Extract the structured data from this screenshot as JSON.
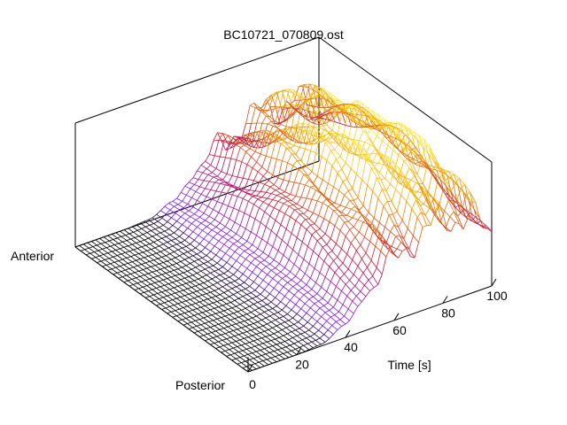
{
  "chart_data": {
    "type": "surface-3d",
    "title": "BC10721_070809.ost",
    "x_axis": {
      "label": "Time [s]",
      "range": [
        0,
        100
      ],
      "ticks": [
        0,
        20,
        40,
        60,
        80,
        100
      ]
    },
    "y_axis": {
      "tick_labels": [
        "Anterior",
        "Posterior"
      ]
    },
    "colormap": [
      "#000000",
      "#7a20f0",
      "#c0143a",
      "#f0a000",
      "#ffee44"
    ],
    "surface_shape": {
      "description_points_time": [
        0,
        20,
        30,
        40,
        50,
        60,
        70,
        80,
        90,
        100
      ],
      "relative_height": [
        0.0,
        0.0,
        0.02,
        0.15,
        0.45,
        0.7,
        0.85,
        0.95,
        0.9,
        0.6
      ]
    }
  }
}
